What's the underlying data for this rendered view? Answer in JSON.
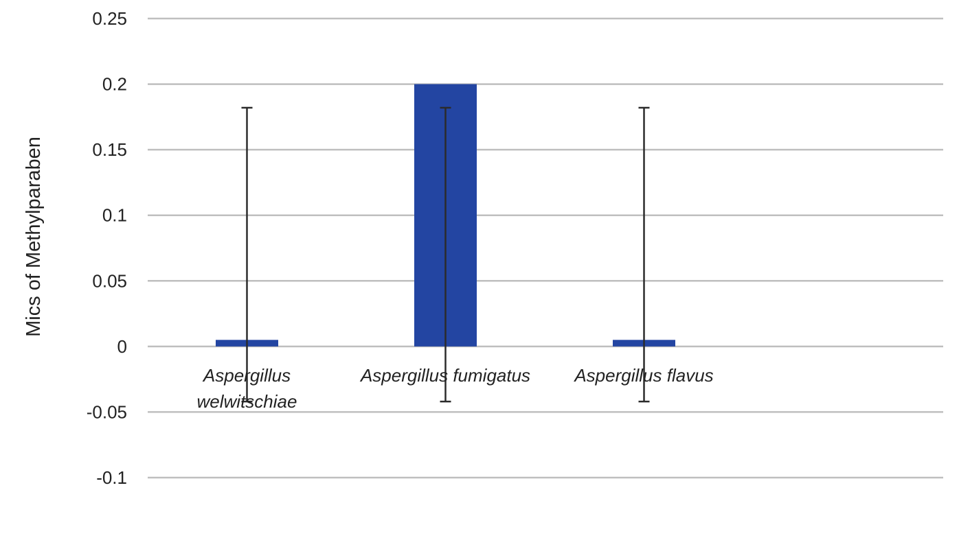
{
  "chart_data": {
    "type": "bar",
    "title": "",
    "xlabel": "",
    "ylabel": "Mics of Methylparaben",
    "categories": [
      [
        "Aspergillus",
        "welwitschiae"
      ],
      [
        "Aspergillus fumigatus"
      ],
      [
        "Aspergillus flavus"
      ]
    ],
    "series": [
      {
        "values": [
          0.005,
          0.2,
          0.005
        ],
        "error_upper": [
          0.182,
          0.182,
          0.182
        ],
        "error_lower": [
          -0.042,
          -0.042,
          -0.042
        ]
      }
    ],
    "ylim": [
      -0.1,
      0.25
    ],
    "yticks": [
      0.25,
      0.2,
      0.15,
      0.1,
      0.05,
      0,
      -0.05,
      -0.1
    ],
    "ytick_labels": [
      "0.25",
      "0.2",
      "0.15",
      "0.1",
      "0.05",
      "0",
      "-0.05",
      "-0.1"
    ],
    "grid": true,
    "legend": "none",
    "colors": {
      "bar": "#2345A2",
      "grid": "#BFBFBF",
      "error_bar": "#2B2B2B",
      "text": "#222222"
    }
  }
}
